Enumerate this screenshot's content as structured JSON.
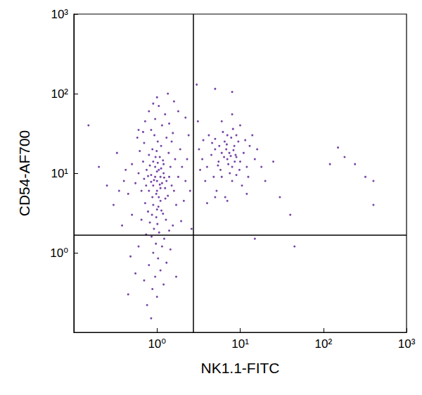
{
  "chart_data": {
    "type": "scatter",
    "x_label": "NK1.1-FITC",
    "y_label": "CD54-AF700",
    "log": true,
    "grid": false,
    "color": "#5e2396",
    "marker": "circle",
    "xlim": [
      0.1,
      1000
    ],
    "ylim": [
      0.1,
      1000
    ],
    "xticks": [
      {
        "value": 1,
        "label": "10⁰"
      },
      {
        "value": 10,
        "label": "10¹"
      },
      {
        "value": 100,
        "label": "10²"
      },
      {
        "value": 1000,
        "label": "10³"
      }
    ],
    "yticks": [
      {
        "value": 1,
        "label": "10⁰"
      },
      {
        "value": 10,
        "label": "10¹"
      },
      {
        "value": 100,
        "label": "10²"
      },
      {
        "value": 1000,
        "label": "10³"
      }
    ],
    "quadrant_lines": {
      "x": 2.73,
      "y": 1.66
    },
    "points": [
      [
        1.0,
        8
      ],
      [
        0.9,
        7
      ],
      [
        1.1,
        9
      ],
      [
        0.8,
        6
      ],
      [
        1.2,
        10
      ],
      [
        0.95,
        12
      ],
      [
        1.05,
        5
      ],
      [
        0.85,
        9.5
      ],
      [
        1.15,
        7.5
      ],
      [
        0.7,
        8.5
      ],
      [
        1.3,
        8
      ],
      [
        0.75,
        11
      ],
      [
        1.25,
        6.5
      ],
      [
        0.9,
        14
      ],
      [
        1.1,
        4.5
      ],
      [
        0.65,
        6
      ],
      [
        1.4,
        9
      ],
      [
        0.8,
        17
      ],
      [
        1.2,
        13
      ],
      [
        1.0,
        3.5
      ],
      [
        0.6,
        10
      ],
      [
        1.5,
        7
      ],
      [
        0.88,
        20
      ],
      [
        1.08,
        16
      ],
      [
        0.72,
        4.2
      ],
      [
        1.35,
        5.2
      ],
      [
        0.98,
        2.8
      ],
      [
        1.18,
        3.1
      ],
      [
        0.82,
        2.4
      ],
      [
        1.02,
        25
      ],
      [
        0.93,
        30
      ],
      [
        1.12,
        22
      ],
      [
        0.68,
        14
      ],
      [
        1.45,
        12
      ],
      [
        0.55,
        7.5
      ],
      [
        1.6,
        6
      ],
      [
        0.78,
        3.3
      ],
      [
        1.28,
        2.6
      ],
      [
        0.92,
        2.0
      ],
      [
        1.06,
        1.8
      ],
      [
        0.86,
        1.6
      ],
      [
        1.22,
        1.5
      ],
      [
        0.97,
        1.3
      ],
      [
        0.74,
        1.7
      ],
      [
        1.15,
        1.2
      ],
      [
        0.9,
        1.0
      ],
      [
        1.03,
        0.85
      ],
      [
        0.8,
        0.7
      ],
      [
        1.1,
        0.6
      ],
      [
        0.95,
        0.5
      ],
      [
        0.7,
        0.45
      ],
      [
        0.88,
        0.35
      ],
      [
        1.0,
        0.28
      ],
      [
        0.76,
        0.22
      ],
      [
        0.85,
        0.15
      ],
      [
        1.2,
        0.4
      ],
      [
        0.6,
        1.2
      ],
      [
        1.4,
        1.9
      ],
      [
        0.5,
        3.0
      ],
      [
        1.7,
        4.0
      ],
      [
        0.45,
        5.5
      ],
      [
        1.8,
        9
      ],
      [
        0.5,
        13
      ],
      [
        1.65,
        15
      ],
      [
        0.62,
        19
      ],
      [
        1.38,
        18
      ],
      [
        0.7,
        24
      ],
      [
        1.3,
        28
      ],
      [
        0.85,
        35
      ],
      [
        1.15,
        40
      ],
      [
        0.95,
        48
      ],
      [
        1.25,
        55
      ],
      [
        0.8,
        60
      ],
      [
        1.05,
        70
      ],
      [
        1.4,
        42
      ],
      [
        0.68,
        33
      ],
      [
        1.5,
        25
      ],
      [
        1.55,
        32
      ],
      [
        1.9,
        20
      ],
      [
        2.0,
        12
      ],
      [
        2.2,
        8
      ],
      [
        2.1,
        4.5
      ],
      [
        1.95,
        2.5
      ],
      [
        2.3,
        15
      ],
      [
        0.4,
        8
      ],
      [
        0.35,
        6
      ],
      [
        0.42,
        11
      ],
      [
        0.3,
        4
      ],
      [
        0.38,
        2.2
      ],
      [
        0.25,
        7
      ],
      [
        0.2,
        12
      ],
      [
        0.33,
        18
      ],
      [
        0.58,
        28
      ],
      [
        1.6,
        80
      ],
      [
        1.35,
        100
      ],
      [
        1.0,
        90
      ],
      [
        0.72,
        45
      ],
      [
        2.4,
        30
      ],
      [
        2.5,
        6
      ],
      [
        0.48,
        0.9
      ],
      [
        1.3,
        0.75
      ],
      [
        0.55,
        0.55
      ],
      [
        1.45,
        1.1
      ],
      [
        0.65,
        2.6
      ],
      [
        1.55,
        2.2
      ],
      [
        0.9,
        4.0
      ],
      [
        1.0,
        6.0
      ],
      [
        1.1,
        6.5
      ],
      [
        0.95,
        9.0
      ],
      [
        1.05,
        11
      ],
      [
        0.85,
        7.8
      ],
      [
        1.0,
        10.5
      ],
      [
        0.92,
        8.2
      ],
      [
        1.08,
        7.2
      ],
      [
        0.98,
        5.5
      ],
      [
        1.02,
        13.5
      ],
      [
        0.88,
        5.0
      ],
      [
        1.12,
        11.5
      ],
      [
        0.78,
        9.2
      ],
      [
        1.22,
        8.8
      ],
      [
        0.96,
        16
      ],
      [
        1.04,
        3.8
      ],
      [
        0.82,
        12.5
      ],
      [
        1.18,
        14.5
      ],
      [
        0.74,
        7.0
      ],
      [
        1.26,
        4.8
      ],
      [
        0.99,
        19
      ],
      [
        1.01,
        2.3
      ],
      [
        0.87,
        3.0
      ],
      [
        1.13,
        3.4
      ],
      [
        0.15,
        40
      ],
      [
        2.6,
        2.0
      ],
      [
        0.45,
        0.3
      ],
      [
        1.7,
        0.5
      ],
      [
        0.6,
        35
      ],
      [
        2.2,
        50
      ],
      [
        1.8,
        60
      ],
      [
        0.9,
        75
      ],
      [
        7,
        15
      ],
      [
        6,
        18
      ],
      [
        8,
        12
      ],
      [
        5,
        20
      ],
      [
        9,
        16
      ],
      [
        6.5,
        25
      ],
      [
        7.5,
        10
      ],
      [
        5.5,
        14
      ],
      [
        8.5,
        22
      ],
      [
        4.5,
        17
      ],
      [
        10,
        14
      ],
      [
        6,
        9
      ],
      [
        7,
        30
      ],
      [
        4,
        12
      ],
      [
        11,
        18
      ],
      [
        5,
        27
      ],
      [
        8,
        8
      ],
      [
        6.8,
        20
      ],
      [
        7.2,
        13
      ],
      [
        9.5,
        25
      ],
      [
        3.5,
        15
      ],
      [
        12,
        12
      ],
      [
        5.8,
        11
      ],
      [
        8.8,
        17
      ],
      [
        6.2,
        33
      ],
      [
        7.8,
        28
      ],
      [
        4.8,
        9
      ],
      [
        9,
        9.5
      ],
      [
        3.2,
        20
      ],
      [
        13,
        22
      ],
      [
        5.2,
        6
      ],
      [
        10.5,
        7
      ],
      [
        6.6,
        5
      ],
      [
        8.2,
        36
      ],
      [
        4.2,
        30
      ],
      [
        15,
        15
      ],
      [
        3.8,
        8
      ],
      [
        11.5,
        26
      ],
      [
        7.4,
        18
      ],
      [
        6.4,
        16
      ],
      [
        5.6,
        22
      ],
      [
        8.6,
        14
      ],
      [
        9.8,
        11
      ],
      [
        4.6,
        24
      ],
      [
        12.5,
        9
      ],
      [
        3.3,
        11
      ],
      [
        14,
        30
      ],
      [
        16,
        20
      ],
      [
        18,
        12
      ],
      [
        6,
        45
      ],
      [
        8,
        55
      ],
      [
        3.1,
        45
      ],
      [
        7,
        4.5
      ],
      [
        10,
        40
      ],
      [
        20,
        8
      ],
      [
        5,
        5
      ],
      [
        25,
        14
      ],
      [
        12,
        5.5
      ],
      [
        9,
        30
      ],
      [
        4,
        4.2
      ],
      [
        6.9,
        23
      ],
      [
        7.7,
        16.5
      ],
      [
        5.4,
        12.5
      ],
      [
        8.3,
        19.5
      ],
      [
        3.6,
        26
      ],
      [
        30,
        5
      ],
      [
        45,
        1.2
      ],
      [
        40,
        3
      ],
      [
        150,
        21
      ],
      [
        180,
        16
      ],
      [
        240,
        13
      ],
      [
        320,
        9
      ],
      [
        400,
        8
      ],
      [
        400,
        4
      ],
      [
        120,
        13
      ],
      [
        15,
        1.5
      ],
      [
        3,
        130
      ],
      [
        5,
        115
      ],
      [
        8,
        105
      ]
    ]
  }
}
